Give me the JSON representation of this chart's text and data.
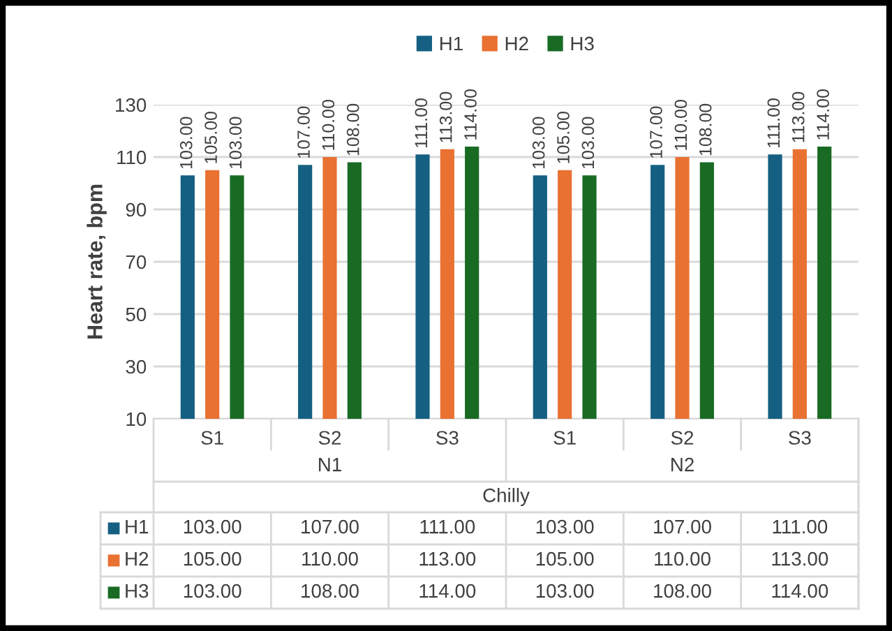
{
  "chart_data": {
    "type": "bar",
    "ylabel": "Heart rate, bpm",
    "categories": [
      "S1",
      "S2",
      "S3",
      "S1",
      "S2",
      "S3"
    ],
    "series": [
      {
        "name": "H1",
        "color": "#156082",
        "values": [
          103,
          107,
          111,
          103,
          107,
          111
        ],
        "value_labels": [
          "103.00",
          "107.00",
          "111.00",
          "103.00",
          "107.00",
          "111.00"
        ]
      },
      {
        "name": "H2",
        "color": "#e97132",
        "values": [
          105,
          110,
          113,
          105,
          110,
          113
        ],
        "value_labels": [
          "105.00",
          "110.00",
          "113.00",
          "105.00",
          "110.00",
          "113.00"
        ]
      },
      {
        "name": "H3",
        "color": "#196b24",
        "values": [
          103,
          108,
          114,
          103,
          108,
          114
        ],
        "value_labels": [
          "103.00",
          "108.00",
          "114.00",
          "103.00",
          "108.00",
          "114.00"
        ]
      }
    ],
    "annotations": [
      "N1",
      "N2",
      "Chilly"
    ],
    "ylim": [
      10,
      130
    ],
    "yticks": [
      10,
      30,
      50,
      70,
      90,
      110,
      130
    ],
    "grid": "y",
    "legend": "top"
  }
}
